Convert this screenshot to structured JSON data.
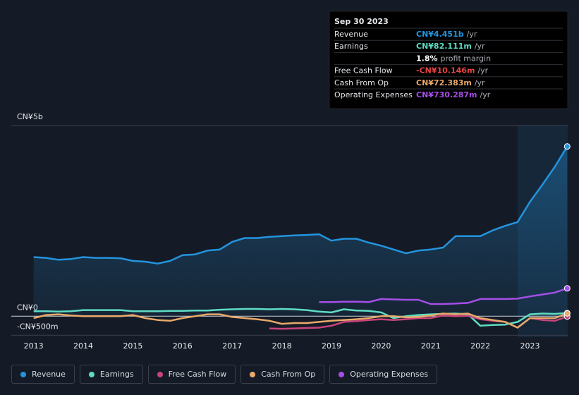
{
  "chart_data": {
    "type": "line",
    "x": [
      2013,
      2013.25,
      2013.5,
      2013.75,
      2014,
      2014.25,
      2014.5,
      2014.75,
      2015,
      2015.25,
      2015.5,
      2015.75,
      2016,
      2016.25,
      2016.5,
      2016.75,
      2017,
      2017.25,
      2017.5,
      2017.75,
      2018,
      2018.25,
      2018.5,
      2018.75,
      2019,
      2019.25,
      2019.5,
      2019.75,
      2020,
      2020.25,
      2020.5,
      2020.75,
      2021,
      2021.25,
      2021.5,
      2021.75,
      2022,
      2022.25,
      2022.5,
      2022.75,
      2023,
      2023.25,
      2023.5,
      2023.75
    ],
    "xlim": [
      2012.55,
      2023.76
    ],
    "xticks": [
      2013,
      2014,
      2015,
      2016,
      2017,
      2018,
      2019,
      2020,
      2021,
      2022,
      2023
    ],
    "ylim": [
      -0.55,
      5
    ],
    "yticks": [
      {
        "value": 5,
        "label": "CN¥5b"
      },
      {
        "value": 0,
        "label": "CN¥0"
      },
      {
        "value": -0.5,
        "label": "-CN¥500m"
      }
    ],
    "highlight_from": 2022.75,
    "series": [
      {
        "name": "Revenue",
        "color": "#2394df",
        "area": true,
        "values": [
          1.55,
          1.53,
          1.48,
          1.5,
          1.55,
          1.53,
          1.53,
          1.52,
          1.45,
          1.43,
          1.38,
          1.45,
          1.6,
          1.62,
          1.72,
          1.75,
          1.95,
          2.05,
          2.05,
          2.08,
          2.1,
          2.12,
          2.13,
          2.15,
          1.98,
          2.03,
          2.03,
          1.93,
          1.85,
          1.75,
          1.65,
          1.72,
          1.75,
          1.8,
          2.1,
          2.1,
          2.1,
          2.25,
          2.37,
          2.47,
          3.0,
          3.45,
          3.92,
          4.451
        ]
      },
      {
        "name": "Earnings",
        "color": "#5fdcc4",
        "values": [
          0.13,
          0.13,
          0.12,
          0.13,
          0.16,
          0.16,
          0.16,
          0.16,
          0.13,
          0.13,
          0.13,
          0.14,
          0.14,
          0.15,
          0.15,
          0.17,
          0.18,
          0.19,
          0.19,
          0.18,
          0.19,
          0.18,
          0.16,
          0.12,
          0.1,
          0.18,
          0.15,
          0.14,
          0.1,
          -0.05,
          0.0,
          0.03,
          0.05,
          0.06,
          0.07,
          0.05,
          -0.25,
          -0.23,
          -0.22,
          -0.15,
          0.05,
          0.07,
          0.06,
          0.082
        ]
      },
      {
        "name": "Free Cash Flow",
        "color": "#c8437c",
        "values": [
          null,
          null,
          null,
          null,
          null,
          null,
          null,
          null,
          null,
          null,
          null,
          null,
          null,
          null,
          null,
          null,
          null,
          null,
          null,
          -0.32,
          -0.33,
          -0.32,
          -0.31,
          -0.3,
          -0.25,
          -0.15,
          -0.13,
          -0.1,
          -0.08,
          -0.1,
          -0.08,
          -0.05,
          -0.05,
          0.02,
          0.0,
          0.01,
          -0.08,
          -0.12,
          -0.15,
          -0.3,
          -0.05,
          -0.1,
          -0.12,
          -0.01
        ]
      },
      {
        "name": "Cash From Op",
        "color": "#e8a96a",
        "values": [
          -0.05,
          0.03,
          0.05,
          0.02,
          0.0,
          0.0,
          0.0,
          0.0,
          0.03,
          -0.05,
          -0.1,
          -0.12,
          -0.05,
          0.0,
          0.05,
          0.05,
          -0.02,
          -0.05,
          -0.08,
          -0.12,
          -0.2,
          -0.18,
          -0.18,
          -0.15,
          -0.12,
          -0.1,
          -0.08,
          -0.05,
          0.0,
          0.0,
          -0.03,
          -0.02,
          0.02,
          0.07,
          0.05,
          0.07,
          -0.05,
          -0.1,
          -0.15,
          -0.3,
          -0.05,
          -0.05,
          -0.05,
          0.072
        ]
      },
      {
        "name": "Operating Expenses",
        "color": "#a54ee8",
        "values": [
          null,
          null,
          null,
          null,
          null,
          null,
          null,
          null,
          null,
          null,
          null,
          null,
          null,
          null,
          null,
          null,
          null,
          null,
          null,
          null,
          null,
          null,
          null,
          0.37,
          0.37,
          0.38,
          0.38,
          0.37,
          0.45,
          0.44,
          0.43,
          0.43,
          0.32,
          0.32,
          0.33,
          0.35,
          0.45,
          0.45,
          0.45,
          0.46,
          0.52,
          0.57,
          0.62,
          0.73
        ]
      }
    ],
    "tooltip": {
      "date": "Sep 30 2023",
      "rows": [
        {
          "label": "Revenue",
          "value_label": "CN¥4.451b",
          "unit": "/yr",
          "color": "#2394df"
        },
        {
          "label": "Earnings",
          "value_label": "CN¥82.111m",
          "unit": "/yr",
          "color": "#5fdcc4"
        },
        {
          "label": "",
          "value_label": "1.8%",
          "unit": "profit margin",
          "color": "#ffffff"
        },
        {
          "label": "Free Cash Flow",
          "value_label": "-CN¥10.146m",
          "unit": "/yr",
          "color": "#e84545"
        },
        {
          "label": "Cash From Op",
          "value_label": "CN¥72.383m",
          "unit": "/yr",
          "color": "#e8a96a"
        },
        {
          "label": "Operating Expenses",
          "value_label": "CN¥730.287m",
          "unit": "/yr",
          "color": "#a54ee8"
        }
      ]
    }
  }
}
